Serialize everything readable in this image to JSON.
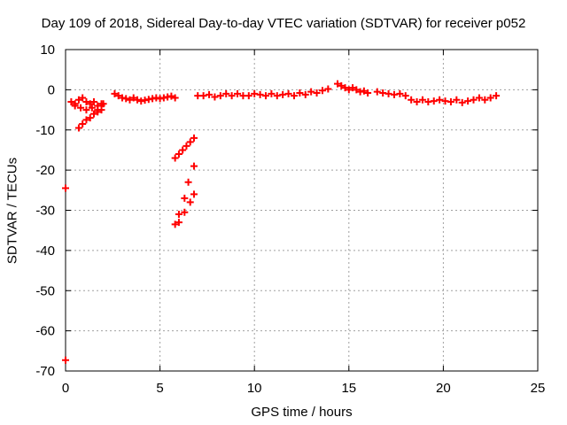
{
  "chart_data": {
    "type": "scatter",
    "title": "Day 109 of 2018, Sidereal Day-to-day VTEC variation (SDTVAR) for receiver p052",
    "xlabel": "GPS time / hours",
    "ylabel": "SDTVAR / TECUs",
    "xlim": [
      0,
      25
    ],
    "ylim": [
      -70,
      10
    ],
    "xticks": [
      "0",
      "5",
      "10",
      "15",
      "20",
      "25"
    ],
    "yticks": [
      "10",
      "0",
      "-10",
      "-20",
      "-30",
      "-40",
      "-50",
      "-60",
      "-70"
    ],
    "grid": true,
    "series_color": "#ff0000",
    "x": [
      0.0,
      0.0,
      0.3,
      0.5,
      0.7,
      0.9,
      1.1,
      1.3,
      1.5,
      1.7,
      1.9,
      0.5,
      0.8,
      1.1,
      1.4,
      1.7,
      1.9,
      0.7,
      0.9,
      1.1,
      1.3,
      1.5,
      1.7,
      1.9,
      2.0,
      2.6,
      2.8,
      3.0,
      3.2,
      3.4,
      3.6,
      3.8,
      4.0,
      4.2,
      4.4,
      4.6,
      4.8,
      5.0,
      5.2,
      5.4,
      5.6,
      5.8,
      5.8,
      6.0,
      6.2,
      6.4,
      6.6,
      6.8,
      6.0,
      6.3,
      6.6,
      6.8,
      5.8,
      6.0,
      6.3,
      6.5,
      6.8,
      7.0,
      7.3,
      7.6,
      7.9,
      8.2,
      8.5,
      8.8,
      9.1,
      9.4,
      9.7,
      10.0,
      10.3,
      10.6,
      10.9,
      11.2,
      11.5,
      11.8,
      12.1,
      12.4,
      12.7,
      13.0,
      13.3,
      13.6,
      13.9,
      14.4,
      14.6,
      14.8,
      15.0,
      15.2,
      15.4,
      15.6,
      15.8,
      16.0,
      16.5,
      16.8,
      17.1,
      17.4,
      17.7,
      18.0,
      18.3,
      18.6,
      18.9,
      19.2,
      19.5,
      19.8,
      20.1,
      20.4,
      20.7,
      21.0,
      21.3,
      21.6,
      21.9,
      22.2,
      22.5,
      22.8
    ],
    "y": [
      -24.5,
      -67.3,
      -3.0,
      -3.5,
      -2.5,
      -2.0,
      -3.0,
      -3.5,
      -3.0,
      -4.0,
      -3.5,
      -4.0,
      -4.5,
      -5.0,
      -4.5,
      -5.0,
      -4.0,
      -9.5,
      -8.5,
      -7.5,
      -7.0,
      -6.0,
      -5.5,
      -5.0,
      -3.5,
      -1.0,
      -1.5,
      -2.0,
      -2.2,
      -2.5,
      -2.0,
      -2.5,
      -2.8,
      -2.6,
      -2.4,
      -2.2,
      -2.0,
      -2.2,
      -2.0,
      -1.8,
      -1.6,
      -2.0,
      -17.0,
      -16.0,
      -15.0,
      -14.0,
      -13.0,
      -12.0,
      -33.0,
      -30.5,
      -28.0,
      -26.0,
      -33.5,
      -31.0,
      -27.0,
      -23.0,
      -19.0,
      -1.5,
      -1.5,
      -1.2,
      -1.8,
      -1.5,
      -1.0,
      -1.5,
      -1.0,
      -1.5,
      -1.5,
      -1.0,
      -1.2,
      -1.5,
      -1.0,
      -1.5,
      -1.2,
      -1.0,
      -1.5,
      -0.8,
      -1.2,
      -0.5,
      -0.8,
      -0.2,
      0.2,
      1.5,
      1.0,
      0.5,
      0.0,
      0.5,
      0.0,
      -0.5,
      -0.3,
      -0.8,
      -0.5,
      -0.8,
      -1.0,
      -1.2,
      -1.0,
      -1.5,
      -2.5,
      -3.0,
      -2.5,
      -3.0,
      -2.8,
      -2.5,
      -2.8,
      -3.0,
      -2.5,
      -3.2,
      -2.8,
      -2.5,
      -2.0,
      -2.5,
      -2.0,
      -1.5
    ]
  }
}
